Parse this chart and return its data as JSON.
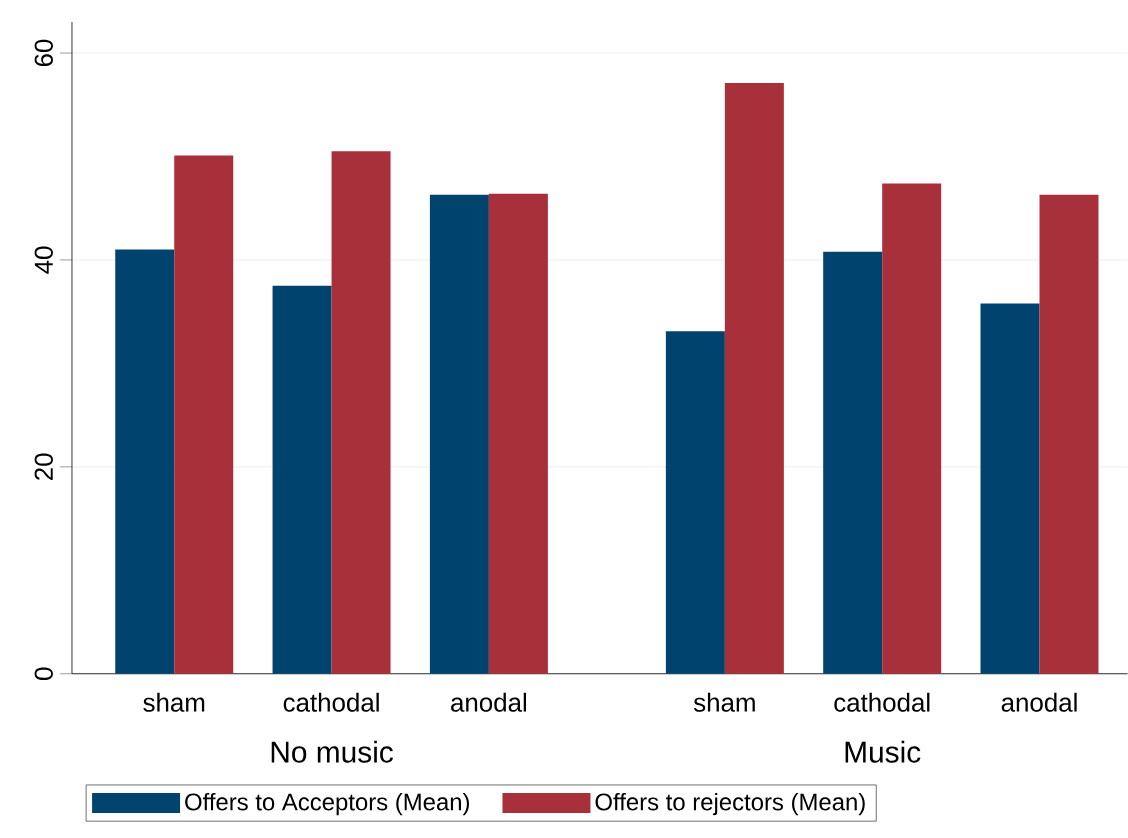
{
  "chart_data": {
    "type": "bar",
    "categories": [
      "sham",
      "cathodal",
      "anodal",
      "sham",
      "cathodal",
      "anodal"
    ],
    "series": [
      {
        "name": "Offers to Acceptors (Mean)",
        "color": "#01436f",
        "values": [
          41.0,
          37.5,
          46.3,
          33.1,
          40.8,
          35.8
        ]
      },
      {
        "name": "Offers to rejectors (Mean)",
        "color": "#a7303a",
        "values": [
          50.1,
          50.5,
          46.4,
          57.1,
          47.4,
          46.3
        ]
      }
    ],
    "annotations": [
      "No music",
      "Music"
    ],
    "ylim": [
      0,
      63
    ],
    "yticks": [
      0,
      20,
      40,
      60
    ],
    "grid": "y",
    "legend": "bottom"
  }
}
